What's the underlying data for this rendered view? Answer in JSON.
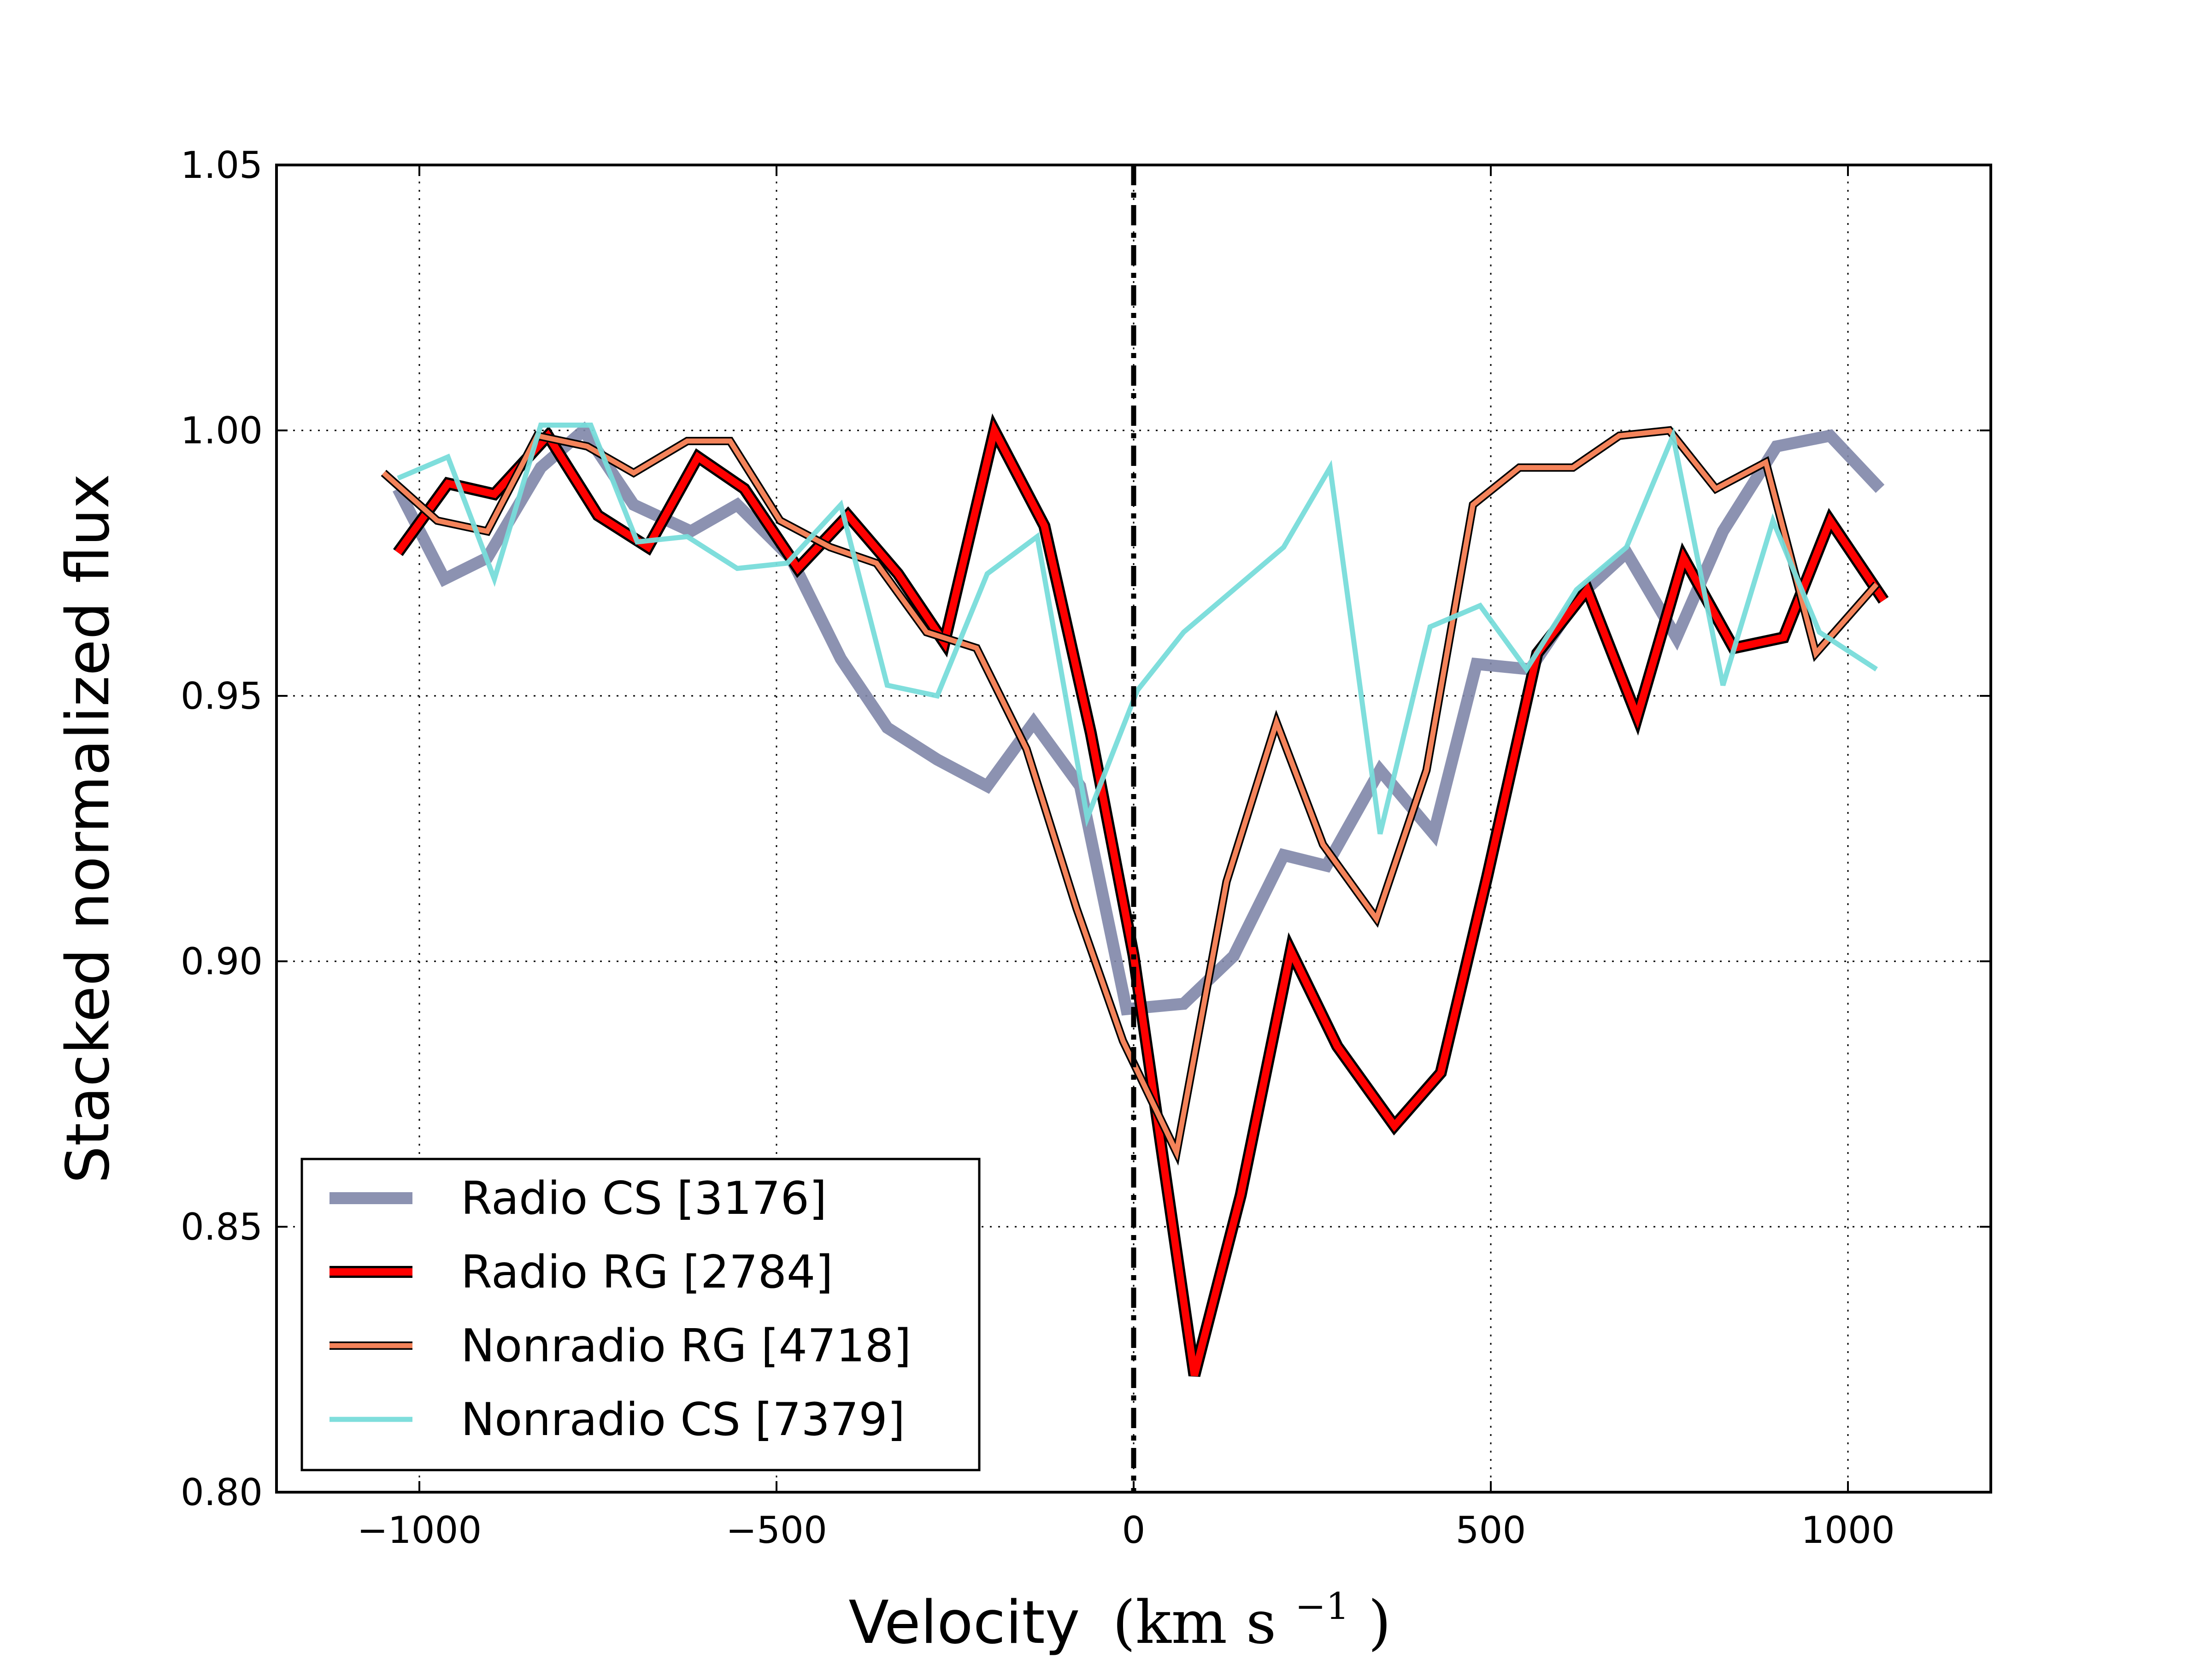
{
  "chart_data": {
    "type": "line",
    "title": "",
    "xlabel": "Velocity",
    "xlabel_unit": "(km s",
    "xlabel_unit_exp": "−1",
    "xlabel_unit_close": ")",
    "ylabel": "Stacked normalized flux",
    "xlim": [
      -1200,
      1200
    ],
    "ylim": [
      0.8,
      1.05
    ],
    "xticks": [
      -1000,
      -500,
      0,
      500,
      1000
    ],
    "xtick_labels": [
      "−1000",
      "−500",
      "0",
      "500",
      "1000"
    ],
    "yticks": [
      0.8,
      0.85,
      0.9,
      0.95,
      1.0,
      1.05
    ],
    "ytick_labels": [
      "0.80",
      "0.85",
      "0.90",
      "0.95",
      "1.00",
      "1.05"
    ],
    "grid": true,
    "vline_x": 0,
    "legend_position": "lower-left",
    "series": [
      {
        "name": "Radio CS [3176]",
        "color": "#7f86a8",
        "style": "thick",
        "points": [
          [
            -1030,
            0.989
          ],
          [
            -965,
            0.972
          ],
          [
            -905,
            0.976
          ],
          [
            -830,
            0.993
          ],
          [
            -770,
            1.0
          ],
          [
            -700,
            0.986
          ],
          [
            -620,
            0.981
          ],
          [
            -555,
            0.986
          ],
          [
            -480,
            0.976
          ],
          [
            -410,
            0.957
          ],
          [
            -345,
            0.944
          ],
          [
            -275,
            0.938
          ],
          [
            -205,
            0.933
          ],
          [
            -140,
            0.945
          ],
          [
            -75,
            0.933
          ],
          [
            -10,
            0.891
          ],
          [
            70,
            0.892
          ],
          [
            140,
            0.901
          ],
          [
            210,
            0.92
          ],
          [
            270,
            0.918
          ],
          [
            345,
            0.936
          ],
          [
            420,
            0.924
          ],
          [
            480,
            0.956
          ],
          [
            555,
            0.955
          ],
          [
            625,
            0.969
          ],
          [
            690,
            0.977
          ],
          [
            760,
            0.961
          ],
          [
            825,
            0.981
          ],
          [
            900,
            0.997
          ],
          [
            975,
            0.999
          ],
          [
            1045,
            0.989
          ]
        ]
      },
      {
        "name": "Radio RG [2784]",
        "color": "#ff0000",
        "style": "thick-outlined",
        "points": [
          [
            -1030,
            0.977
          ],
          [
            -960,
            0.99
          ],
          [
            -895,
            0.988
          ],
          [
            -820,
            0.999
          ],
          [
            -750,
            0.984
          ],
          [
            -680,
            0.978
          ],
          [
            -610,
            0.995
          ],
          [
            -545,
            0.989
          ],
          [
            -470,
            0.974
          ],
          [
            -400,
            0.984
          ],
          [
            -330,
            0.973
          ],
          [
            -265,
            0.96
          ],
          [
            -195,
            1.0
          ],
          [
            -125,
            0.982
          ],
          [
            -60,
            0.943
          ],
          [
            0,
            0.901
          ],
          [
            85,
            0.822
          ],
          [
            150,
            0.856
          ],
          [
            220,
            0.902
          ],
          [
            285,
            0.884
          ],
          [
            365,
            0.869
          ],
          [
            430,
            0.879
          ],
          [
            495,
            0.916
          ],
          [
            565,
            0.958
          ],
          [
            635,
            0.97
          ],
          [
            705,
            0.946
          ],
          [
            770,
            0.976
          ],
          [
            840,
            0.959
          ],
          [
            910,
            0.961
          ],
          [
            975,
            0.983
          ],
          [
            1050,
            0.968
          ]
        ]
      },
      {
        "name": "Nonradio RG [4718]",
        "color": "#f4835a",
        "style": "medium-outlined",
        "points": [
          [
            -1050,
            0.992
          ],
          [
            -975,
            0.983
          ],
          [
            -905,
            0.981
          ],
          [
            -835,
            0.999
          ],
          [
            -765,
            0.997
          ],
          [
            -700,
            0.992
          ],
          [
            -625,
            0.998
          ],
          [
            -565,
            0.998
          ],
          [
            -495,
            0.983
          ],
          [
            -425,
            0.978
          ],
          [
            -360,
            0.975
          ],
          [
            -290,
            0.962
          ],
          [
            -220,
            0.959
          ],
          [
            -150,
            0.94
          ],
          [
            -80,
            0.91
          ],
          [
            -15,
            0.885
          ],
          [
            60,
            0.864
          ],
          [
            130,
            0.915
          ],
          [
            200,
            0.945
          ],
          [
            265,
            0.922
          ],
          [
            340,
            0.908
          ],
          [
            410,
            0.936
          ],
          [
            475,
            0.986
          ],
          [
            540,
            0.993
          ],
          [
            615,
            0.993
          ],
          [
            680,
            0.999
          ],
          [
            750,
            1.0
          ],
          [
            815,
            0.989
          ],
          [
            885,
            0.994
          ],
          [
            955,
            0.958
          ],
          [
            1040,
            0.971
          ]
        ]
      },
      {
        "name": "Nonradio CS [7379]",
        "color": "#78dcda",
        "style": "thin",
        "points": [
          [
            -1030,
            0.991
          ],
          [
            -960,
            0.995
          ],
          [
            -895,
            0.972
          ],
          [
            -830,
            1.001
          ],
          [
            -760,
            1.001
          ],
          [
            -695,
            0.979
          ],
          [
            -625,
            0.98
          ],
          [
            -555,
            0.974
          ],
          [
            -485,
            0.975
          ],
          [
            -410,
            0.986
          ],
          [
            -345,
            0.952
          ],
          [
            -275,
            0.95
          ],
          [
            -205,
            0.973
          ],
          [
            -135,
            0.98
          ],
          [
            -65,
            0.927
          ],
          [
            5,
            0.951
          ],
          [
            70,
            0.962
          ],
          [
            140,
            0.97
          ],
          [
            210,
            0.978
          ],
          [
            275,
            0.993
          ],
          [
            345,
            0.924
          ],
          [
            415,
            0.963
          ],
          [
            485,
            0.967
          ],
          [
            550,
            0.955
          ],
          [
            620,
            0.97
          ],
          [
            690,
            0.978
          ],
          [
            755,
            0.999
          ],
          [
            825,
            0.952
          ],
          [
            895,
            0.983
          ],
          [
            960,
            0.962
          ],
          [
            1040,
            0.955
          ]
        ]
      }
    ]
  }
}
